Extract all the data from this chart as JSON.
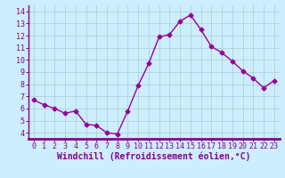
{
  "x": [
    0,
    1,
    2,
    3,
    4,
    5,
    6,
    7,
    8,
    9,
    10,
    11,
    12,
    13,
    14,
    15,
    16,
    17,
    18,
    19,
    20,
    21,
    22,
    23
  ],
  "y": [
    6.7,
    6.3,
    6.0,
    5.6,
    5.8,
    4.7,
    4.6,
    4.0,
    3.9,
    5.8,
    7.9,
    9.7,
    11.9,
    12.1,
    13.2,
    13.7,
    12.5,
    11.1,
    10.6,
    9.9,
    9.1,
    8.5,
    7.7,
    8.3
  ],
  "line_color": "#990099",
  "marker": "D",
  "marker_size": 2.5,
  "xlabel": "Windchill (Refroidissement éolien,°C)",
  "xlabel_fontsize": 7,
  "xlim": [
    -0.5,
    23.5
  ],
  "ylim": [
    3.5,
    14.5
  ],
  "yticks": [
    4,
    5,
    6,
    7,
    8,
    9,
    10,
    11,
    12,
    13,
    14
  ],
  "xticks": [
    0,
    1,
    2,
    3,
    4,
    5,
    6,
    7,
    8,
    9,
    10,
    11,
    12,
    13,
    14,
    15,
    16,
    17,
    18,
    19,
    20,
    21,
    22,
    23
  ],
  "tick_fontsize": 6,
  "background_color": "#cceeff",
  "grid_color": "#aacccc",
  "spine_color": "#880088",
  "label_color": "#880088",
  "axis_bar_color": "#880088"
}
